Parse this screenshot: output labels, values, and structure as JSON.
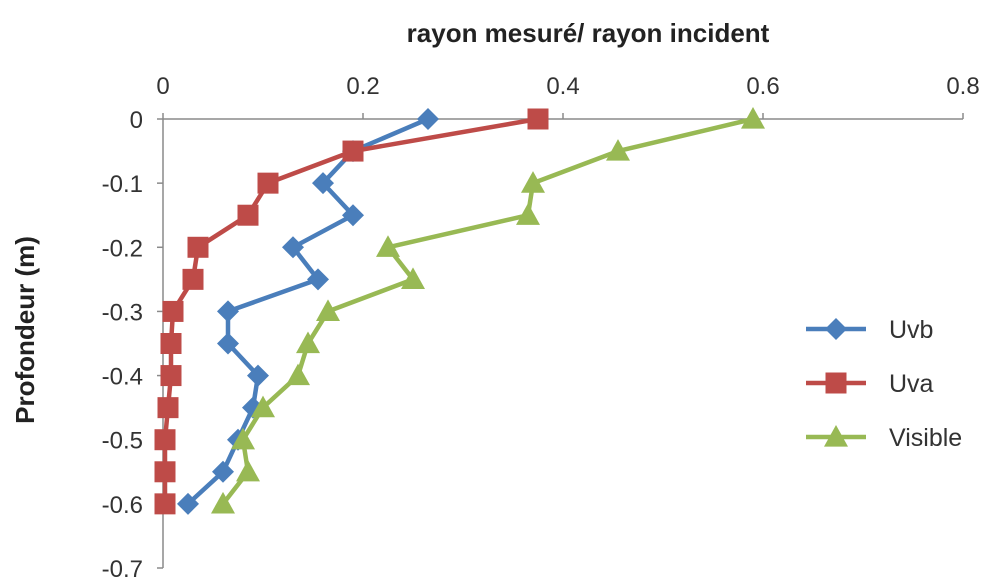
{
  "chart_data": {
    "type": "line",
    "title": "rayon mesuré/ rayon incident",
    "xlabel": "rayon mesuré/ rayon incident",
    "ylabel": "Profondeur (m)",
    "x_axis_position": "top",
    "xlim": [
      0,
      0.8
    ],
    "ylim": [
      -0.7,
      0
    ],
    "x_ticks": [
      "0",
      "0.2",
      "0.4",
      "0.6",
      "0.8"
    ],
    "y_ticks": [
      "0",
      "-0.1",
      "-0.2",
      "-0.3",
      "-0.4",
      "-0.5",
      "-0.6",
      "-0.7"
    ],
    "grid": false,
    "legend_position": "right",
    "series": [
      {
        "name": "Uvb",
        "color": "#4a7ebb",
        "marker": "diamond",
        "x": [
          0.265,
          0.19,
          0.16,
          0.19,
          0.13,
          0.155,
          0.065,
          0.065,
          0.095,
          0.09,
          0.075,
          0.06,
          0.025
        ],
        "y": [
          0,
          -0.05,
          -0.1,
          -0.15,
          -0.2,
          -0.25,
          -0.3,
          -0.35,
          -0.4,
          -0.45,
          -0.5,
          -0.55,
          -0.6
        ]
      },
      {
        "name": "Uva",
        "color": "#be4b48",
        "marker": "square",
        "x": [
          0.375,
          0.19,
          0.105,
          0.085,
          0.035,
          0.03,
          0.01,
          0.008,
          0.008,
          0.005,
          0.002,
          0.002,
          0.002
        ],
        "y": [
          0,
          -0.05,
          -0.1,
          -0.15,
          -0.2,
          -0.25,
          -0.3,
          -0.35,
          -0.4,
          -0.45,
          -0.5,
          -0.55,
          -0.6
        ]
      },
      {
        "name": "Visible",
        "color": "#98b954",
        "marker": "triangle",
        "x": [
          0.59,
          0.455,
          0.37,
          0.365,
          0.225,
          0.25,
          0.165,
          0.145,
          0.135,
          0.1,
          0.08,
          0.085,
          0.06
        ],
        "y": [
          0,
          -0.05,
          -0.1,
          -0.15,
          -0.2,
          -0.25,
          -0.3,
          -0.35,
          -0.4,
          -0.45,
          -0.5,
          -0.55,
          -0.6
        ]
      }
    ]
  }
}
